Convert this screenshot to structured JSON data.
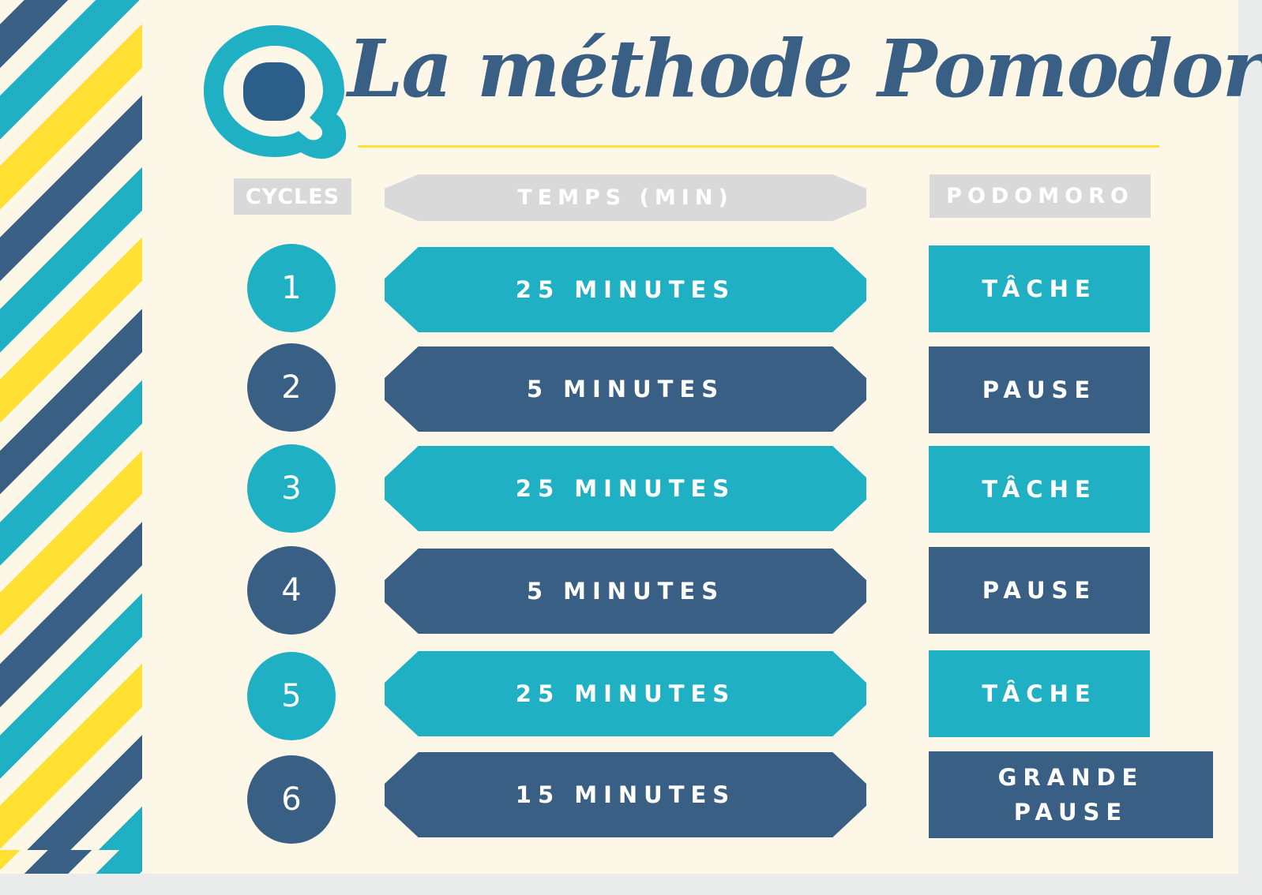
{
  "title": "La méthode Pomodoro",
  "colors": {
    "teal": "#20b0c3",
    "navy": "#3a5f84",
    "yellow": "#ffe033",
    "cream": "#fdf7e7",
    "header_grey": "#d9d9d9"
  },
  "headers": {
    "cycles": "CYCLES",
    "temps": "TEMPS (MIN)",
    "podomoro": "PODOMORO"
  },
  "rows": [
    {
      "cycle": "1",
      "temps": "25 MINUTES",
      "type": "TÂCHE",
      "color": "teal"
    },
    {
      "cycle": "2",
      "temps": "5 MINUTES",
      "type": "PAUSE",
      "color": "navy"
    },
    {
      "cycle": "3",
      "temps": "25 MINUTES",
      "type": "TÂCHE",
      "color": "teal"
    },
    {
      "cycle": "4",
      "temps": "5 MINUTES",
      "type": "PAUSE",
      "color": "navy"
    },
    {
      "cycle": "5",
      "temps": "25 MINUTES",
      "type": "TÂCHE",
      "color": "teal"
    },
    {
      "cycle": "6",
      "temps": "15 MINUTES",
      "type": "GRANDE PAUSE",
      "color": "navy"
    }
  ]
}
